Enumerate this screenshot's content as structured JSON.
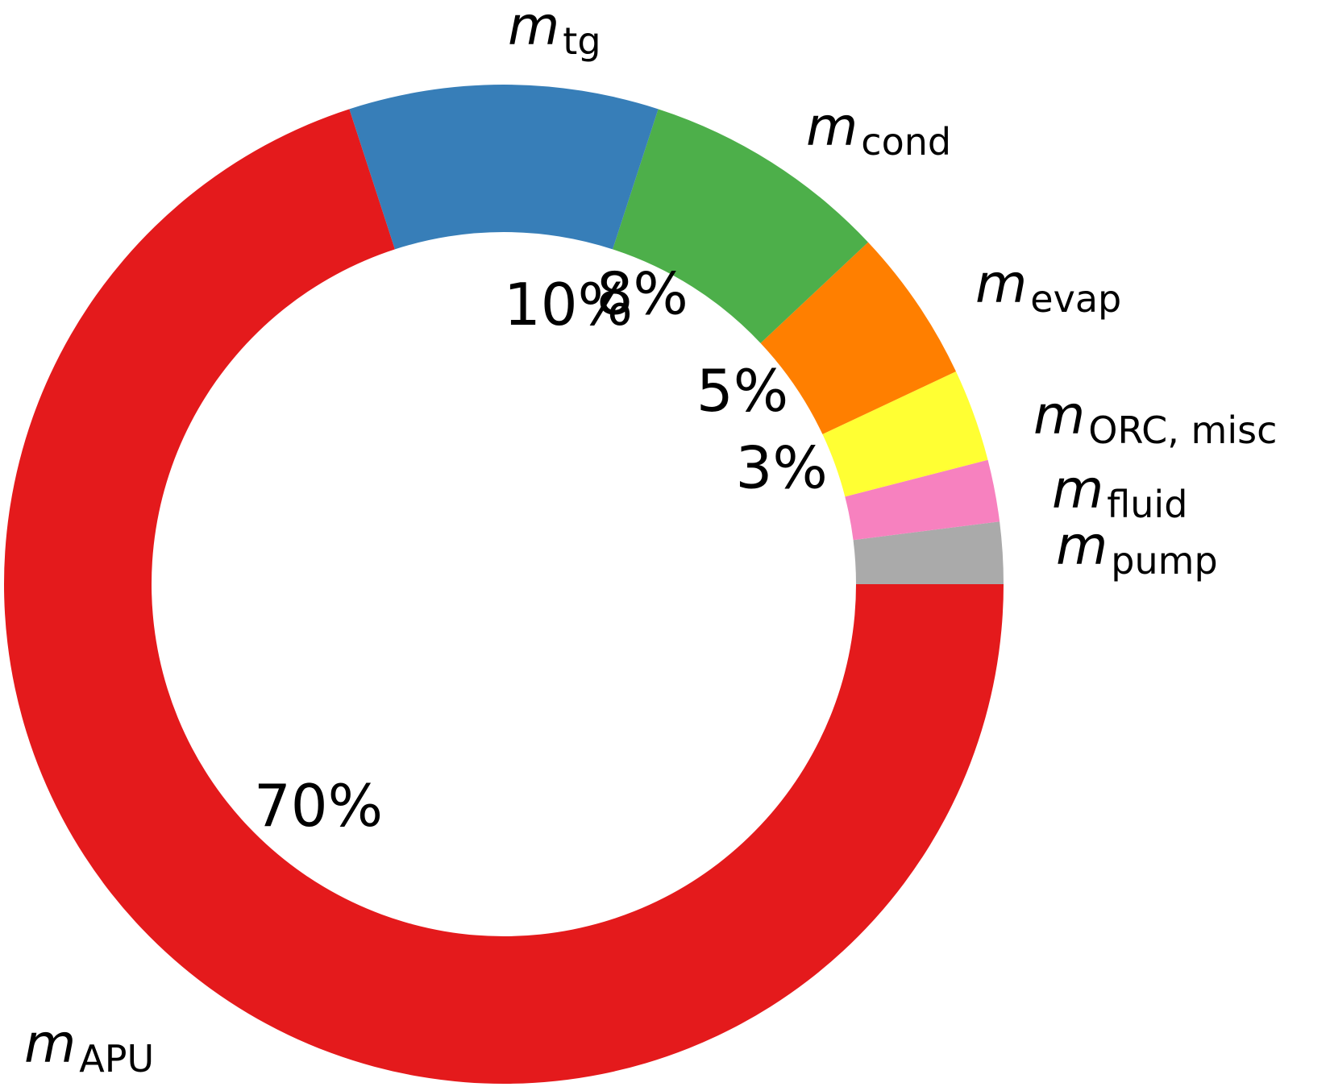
{
  "chart_data": {
    "type": "pie",
    "donut": true,
    "title": "",
    "series": [
      {
        "labels": [
          {
            "symbol": "m",
            "sub": "APU"
          },
          {
            "symbol": "m",
            "sub": "tg"
          },
          {
            "symbol": "m",
            "sub": "cond"
          },
          {
            "symbol": "m",
            "sub": "evap"
          },
          {
            "symbol": "m",
            "sub": "ORC, misc"
          },
          {
            "symbol": "m",
            "sub": "fluid"
          },
          {
            "symbol": "m",
            "sub": "pump"
          }
        ],
        "values": [
          70,
          10,
          8,
          5,
          3,
          2,
          2
        ],
        "value_labels": [
          "70%",
          "10%",
          "8%",
          "5%",
          "3%",
          "",
          ""
        ],
        "colors": [
          "#e41a1c",
          "#377eb8",
          "#4daf4a",
          "#ff7f00",
          "#ffff33",
          "#f781bf",
          "#aaaaaa"
        ]
      }
    ],
    "start": "right, counterclockwise from 0°... slices drawn clockwise from 3 o'clock"
  }
}
